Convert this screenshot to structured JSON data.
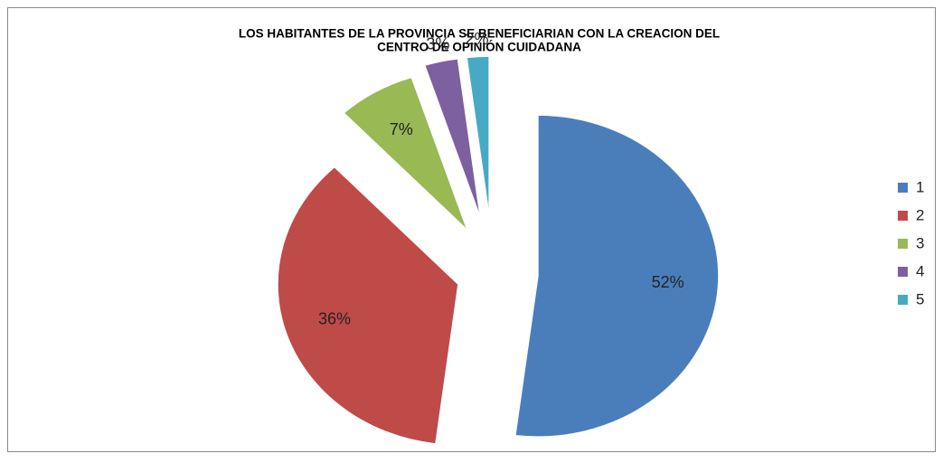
{
  "chart_data": {
    "type": "pie",
    "title": [
      "LOS HABITANTES DE LA PROVINCIA SE BENEFICIARIAN  CON LA CREACION DEL",
      "CENTRO DE OPINIÓN CUIDADANA"
    ],
    "categories": [
      "1",
      "2",
      "3",
      "4",
      "5"
    ],
    "values": [
      52,
      36,
      7,
      3,
      2
    ],
    "value_labels": [
      "52%",
      "36%",
      "7%",
      "3%",
      "2%"
    ],
    "colors": [
      "#4a7ebb",
      "#be4b48",
      "#98b954",
      "#7d60a0",
      "#46aac5"
    ],
    "legend": "right"
  }
}
